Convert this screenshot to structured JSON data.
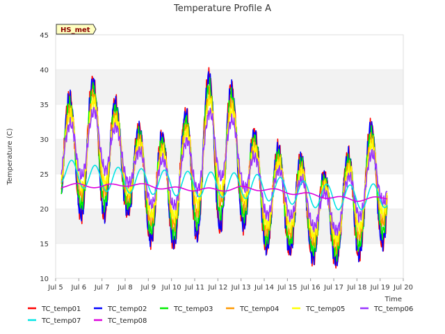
{
  "chart_data": {
    "type": "line",
    "title": "Temperature Profile A",
    "xlabel": "Time",
    "ylabel": "Temperature (C)",
    "ylim": [
      10,
      45
    ],
    "xlim": [
      5,
      20
    ],
    "x_tick_values": [
      5,
      6,
      7,
      8,
      9,
      10,
      11,
      12,
      13,
      14,
      15,
      16,
      17,
      18,
      19,
      20
    ],
    "x_tick_labels": [
      "Jul 5",
      "Jul 6",
      "Jul 7",
      "Jul 8",
      "Jul 9",
      "Jul 10",
      "Jul 11",
      "Jul 12",
      "Jul 13",
      "Jul 14",
      "Jul 15",
      "Jul 16",
      "Jul 17",
      "Jul 18",
      "Jul 19",
      "Jul 20"
    ],
    "y_ticks": [
      10,
      15,
      20,
      25,
      30,
      35,
      40,
      45
    ],
    "grid": "horizontal bands",
    "legend_position": "bottom",
    "badge": "HS_met",
    "x_start": 5.25,
    "x_end": 19.3,
    "days": [
      6,
      7,
      8,
      9,
      10,
      11,
      12,
      13,
      14,
      15,
      16,
      17,
      18,
      19
    ],
    "daily_max": [
      36,
      40,
      32,
      31,
      30,
      36,
      41,
      35,
      28,
      29,
      26,
      24,
      30,
      33
    ],
    "daily_min": [
      19,
      19,
      20,
      15.5,
      15,
      16,
      17,
      18,
      14.5,
      14,
      13,
      12.5,
      13,
      15
    ],
    "series": [
      {
        "name": "TC_temp01",
        "color": "#ff0000",
        "amp": 1.0,
        "offset": 0.0
      },
      {
        "name": "TC_temp02",
        "color": "#0000ff",
        "amp": 0.98,
        "offset": 0.0
      },
      {
        "name": "TC_temp03",
        "color": "#00ee00",
        "amp": 0.85,
        "offset": 0.4
      },
      {
        "name": "TC_temp04",
        "color": "#ff9900",
        "amp": 0.72,
        "offset": 0.8
      },
      {
        "name": "TC_temp05",
        "color": "#ffff00",
        "amp": 0.62,
        "offset": 1.2
      },
      {
        "name": "TC_temp06",
        "color": "#9933ff",
        "amp": 0.45,
        "offset": 1.5
      },
      {
        "name": "TC_temp07",
        "color": "#00e5e5",
        "amp": 0.15,
        "offset": 1.8
      },
      {
        "name": "TC_temp08",
        "color": "#dd00dd",
        "amp": 0.02,
        "offset": 0.0
      }
    ],
    "temp07_points": [
      [
        5.3,
        25.5
      ],
      [
        6.5,
        24.5
      ],
      [
        7.5,
        24.2
      ],
      [
        8.5,
        24.0
      ],
      [
        9.5,
        23.8
      ],
      [
        10.5,
        23.6
      ],
      [
        11.5,
        23.5
      ],
      [
        12.5,
        23.4
      ],
      [
        13.5,
        23.2
      ],
      [
        14.5,
        22.8
      ],
      [
        15.5,
        22.3
      ],
      [
        16.5,
        21.8
      ],
      [
        17.5,
        21.6
      ],
      [
        18.5,
        21.7
      ],
      [
        19.3,
        22.0
      ]
    ],
    "temp08_points": [
      [
        5.3,
        23.3
      ],
      [
        6,
        23.4
      ],
      [
        7,
        23.2
      ],
      [
        8,
        23.5
      ],
      [
        9,
        23.3
      ],
      [
        10,
        22.9
      ],
      [
        11,
        22.8
      ],
      [
        12,
        22.7
      ],
      [
        13,
        23.0
      ],
      [
        14,
        22.8
      ],
      [
        15,
        22.4
      ],
      [
        16,
        22.0
      ],
      [
        17,
        21.6
      ],
      [
        18,
        21.3
      ],
      [
        19,
        21.5
      ],
      [
        19.3,
        21.6
      ]
    ]
  }
}
